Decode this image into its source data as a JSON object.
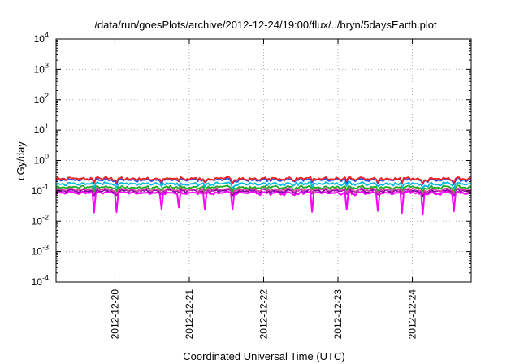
{
  "chart_data": {
    "type": "line",
    "title": "/data/run/goesPlots/archive/2012-12-24/19:00/flux/../bryn/5daysEarth.plot",
    "xlabel": "Coordinated Universal Time (UTC)",
    "ylabel": "cGy/day",
    "yscale": "log",
    "ylim_exp": [
      -4,
      4
    ],
    "y_ticks": [
      {
        "base": "10",
        "exp": "-4",
        "value": 0.0001
      },
      {
        "base": "10",
        "exp": "-3",
        "value": 0.001
      },
      {
        "base": "10",
        "exp": "-2",
        "value": 0.01
      },
      {
        "base": "10",
        "exp": "-1",
        "value": 0.1
      },
      {
        "base": "10",
        "exp": "0",
        "value": 1
      },
      {
        "base": "10",
        "exp": "1",
        "value": 10
      },
      {
        "base": "10",
        "exp": "2",
        "value": 100
      },
      {
        "base": "10",
        "exp": "3",
        "value": 1000
      },
      {
        "base": "10",
        "exp": "4",
        "value": 10000
      }
    ],
    "xlim": [
      "2012-12-19 05:00",
      "2012-12-24 19:00"
    ],
    "x_ticks": [
      "2012-12-20",
      "2012-12-21",
      "2012-12-22",
      "2012-12-23",
      "2012-12-24"
    ],
    "grid": true,
    "legend": "none",
    "series": [
      {
        "color": "#ee2222",
        "level": 0.25
      },
      {
        "color": "#2255ee",
        "level": 0.23
      },
      {
        "color": "#00bbdd",
        "level": 0.17
      },
      {
        "color": "#22aa22",
        "level": 0.13
      },
      {
        "color": "#dd44aa",
        "level": 0.11
      },
      {
        "color": "#8800aa",
        "level": 0.1
      },
      {
        "color": "#ff00ff",
        "level": 0.085
      }
    ]
  }
}
